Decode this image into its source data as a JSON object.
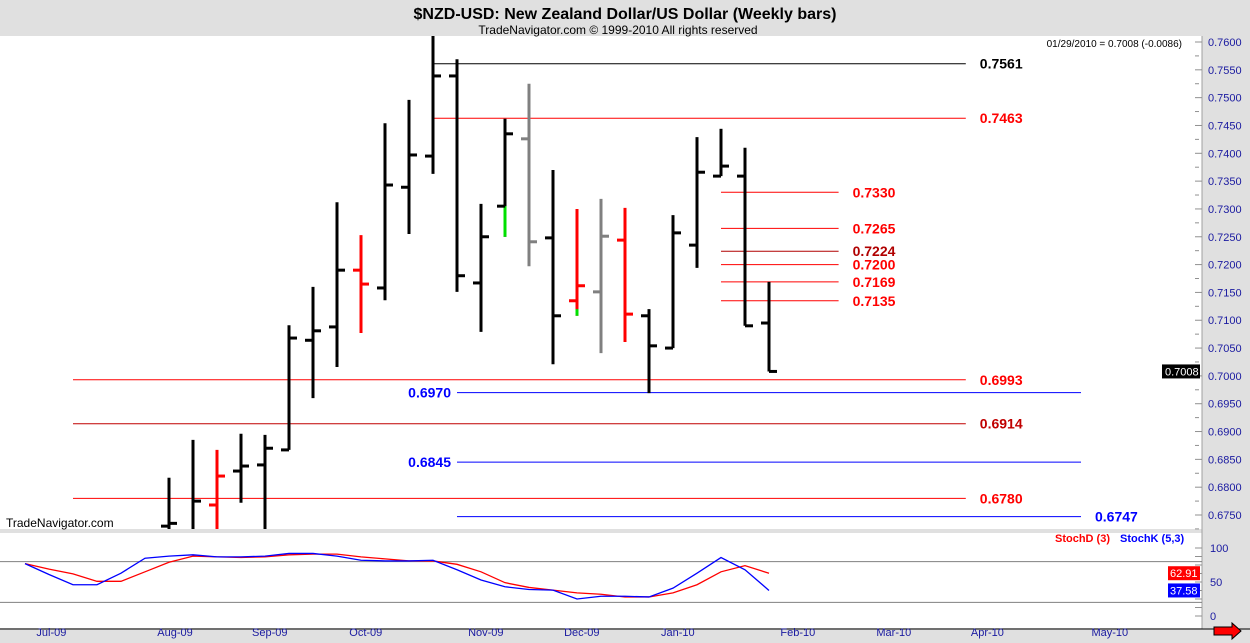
{
  "header": {
    "title": "$NZD-USD:  New Zealand Dollar/US Dollar  (Weekly bars)",
    "copyright": "TradeNavigator.com © 1999-2010 All rights reserved",
    "last_quote": "01/29/2010 = 0.7008 (-0.0086)",
    "watermark": "TradeNavigator.com"
  },
  "chart_data": [
    {
      "type": "ohlc",
      "title": "$NZD-USD:  New Zealand Dollar/US Dollar  (Weekly bars)",
      "ylim": [
        0.674,
        0.761
      ],
      "yticks": [
        "0.6750",
        "0.6800",
        "0.6850",
        "0.6900",
        "0.6950",
        "0.7000",
        "0.7050",
        "0.7100",
        "0.7150",
        "0.7200",
        "0.7250",
        "0.7300",
        "0.7350",
        "0.7400",
        "0.7450",
        "0.7500",
        "0.7550",
        "0.7600"
      ],
      "last_price_label": "0.7008",
      "colors": {
        "up": "#000000",
        "red": "#ff0000",
        "gray": "#808080",
        "green": "#00e000"
      },
      "bars": [
        {
          "week": 6,
          "o": 0.673,
          "h": 0.6817,
          "l": 0.67,
          "c": 0.6735,
          "color": "up"
        },
        {
          "week": 7,
          "o": 0.672,
          "h": 0.6885,
          "l": 0.669,
          "c": 0.6775,
          "color": "up"
        },
        {
          "week": 8,
          "o": 0.6768,
          "h": 0.6867,
          "l": 0.67,
          "c": 0.682,
          "color": "red"
        },
        {
          "week": 9,
          "o": 0.6829,
          "h": 0.6896,
          "l": 0.6772,
          "c": 0.6838,
          "color": "up"
        },
        {
          "week": 10,
          "o": 0.684,
          "h": 0.6894,
          "l": 0.67,
          "c": 0.687,
          "color": "up"
        },
        {
          "week": 11,
          "o": 0.6867,
          "h": 0.7091,
          "l": 0.6867,
          "c": 0.7068,
          "color": "up"
        },
        {
          "week": 12,
          "o": 0.7064,
          "h": 0.716,
          "l": 0.696,
          "c": 0.7081,
          "color": "up"
        },
        {
          "week": 13,
          "o": 0.7088,
          "h": 0.7312,
          "l": 0.7016,
          "c": 0.719,
          "color": "up"
        },
        {
          "week": 14,
          "o": 0.719,
          "h": 0.7253,
          "l": 0.7077,
          "c": 0.7165,
          "color": "red"
        },
        {
          "week": 15,
          "o": 0.7158,
          "h": 0.7454,
          "l": 0.7136,
          "c": 0.7343,
          "color": "up"
        },
        {
          "week": 16,
          "o": 0.7339,
          "h": 0.7496,
          "l": 0.7255,
          "c": 0.7397,
          "color": "up"
        },
        {
          "week": 17,
          "o": 0.7395,
          "h": 0.7613,
          "l": 0.7363,
          "c": 0.7539,
          "color": "up"
        },
        {
          "week": 18,
          "o": 0.7539,
          "h": 0.7569,
          "l": 0.7151,
          "c": 0.718,
          "color": "up"
        },
        {
          "week": 19,
          "o": 0.7167,
          "h": 0.7309,
          "l": 0.7079,
          "c": 0.725,
          "color": "up"
        },
        {
          "week": 20,
          "o": 0.7305,
          "h": 0.7462,
          "l": 0.725,
          "c": 0.7435,
          "color": "up",
          "low_accent": {
            "to": 0.7305,
            "color": "green"
          }
        },
        {
          "week": 21,
          "o": 0.7426,
          "h": 0.7525,
          "l": 0.7197,
          "c": 0.7241,
          "color": "gray"
        },
        {
          "week": 22,
          "o": 0.7248,
          "h": 0.737,
          "l": 0.7021,
          "c": 0.7108,
          "color": "up"
        },
        {
          "week": 23,
          "o": 0.7135,
          "h": 0.73,
          "l": 0.7108,
          "c": 0.7162,
          "color": "red",
          "low_accent": {
            "to": 0.712,
            "color": "green"
          }
        },
        {
          "week": 24,
          "o": 0.7151,
          "h": 0.7318,
          "l": 0.7041,
          "c": 0.7251,
          "color": "gray"
        },
        {
          "week": 25,
          "o": 0.7244,
          "h": 0.7302,
          "l": 0.7061,
          "c": 0.7111,
          "color": "red"
        },
        {
          "week": 26,
          "o": 0.7108,
          "h": 0.712,
          "l": 0.6969,
          "c": 0.7054,
          "color": "up"
        },
        {
          "week": 27,
          "o": 0.705,
          "h": 0.7289,
          "l": 0.705,
          "c": 0.7257,
          "color": "up"
        },
        {
          "week": 28,
          "o": 0.7235,
          "h": 0.7429,
          "l": 0.7194,
          "c": 0.7366,
          "color": "up"
        },
        {
          "week": 29,
          "o": 0.7359,
          "h": 0.7444,
          "l": 0.7359,
          "c": 0.7377,
          "color": "up"
        },
        {
          "week": 30,
          "o": 0.7359,
          "h": 0.741,
          "l": 0.709,
          "c": 0.709,
          "color": "up"
        },
        {
          "week": 31,
          "o": 0.7095,
          "h": 0.7169,
          "l": 0.7008,
          "c": 0.7008,
          "color": "up"
        }
      ],
      "levels": [
        {
          "value": 0.7561,
          "label": "0.7561",
          "color": "#000000",
          "from_week": 17,
          "to_week": 39.2,
          "label_side": "right"
        },
        {
          "value": 0.7463,
          "label": "0.7463",
          "color": "#ff0000",
          "from_week": 17,
          "to_week": 39.2,
          "label_side": "right"
        },
        {
          "value": 0.733,
          "label": "0.7330",
          "color": "#ff0000",
          "from_week": 29,
          "to_week": 33.9,
          "label_side": "right"
        },
        {
          "value": 0.7265,
          "label": "0.7265",
          "color": "#ff0000",
          "from_week": 29,
          "to_week": 33.9,
          "label_side": "right"
        },
        {
          "value": 0.7224,
          "label": "0.7224",
          "color": "#b00000",
          "from_week": 29,
          "to_week": 33.9,
          "label_side": "right"
        },
        {
          "value": 0.72,
          "label": "0.7200",
          "color": "#ff0000",
          "from_week": 29,
          "to_week": 33.9,
          "label_side": "right"
        },
        {
          "value": 0.7169,
          "label": "0.7169",
          "color": "#ff0000",
          "from_week": 29,
          "to_week": 33.9,
          "label_side": "right"
        },
        {
          "value": 0.7135,
          "label": "0.7135",
          "color": "#ff0000",
          "from_week": 29,
          "to_week": 33.9,
          "label_side": "right"
        },
        {
          "value": 0.6993,
          "label": "0.6993",
          "color": "#ff0000",
          "from_week": 2,
          "to_week": 39.2,
          "label_side": "right"
        },
        {
          "value": 0.697,
          "label": "0.6970",
          "color": "#0000ff",
          "from_week": 18,
          "to_week": 44,
          "label_side": "left"
        },
        {
          "value": 0.6914,
          "label": "0.6914",
          "color": "#c00000",
          "from_week": 2,
          "to_week": 39.2,
          "label_side": "right"
        },
        {
          "value": 0.6845,
          "label": "0.6845",
          "color": "#0000ff",
          "from_week": 18,
          "to_week": 44,
          "label_side": "left"
        },
        {
          "value": 0.678,
          "label": "0.6780",
          "color": "#ff0000",
          "from_week": 2,
          "to_week": 39.2,
          "label_side": "right"
        },
        {
          "value": 0.6747,
          "label": "0.6747",
          "color": "#0000ff",
          "from_week": 18,
          "to_week": 44,
          "label_side": "right"
        }
      ]
    },
    {
      "type": "line",
      "title": "Stochastic",
      "ylim": [
        0,
        100
      ],
      "yticks": [
        "0",
        "50",
        "100"
      ],
      "reference_lines": [
        20,
        80
      ],
      "series": [
        {
          "name": "StochD (3)",
          "color": "#ff0000",
          "last_label": "62.91",
          "values": [
            77,
            69,
            62,
            51,
            51,
            65,
            79,
            88,
            87,
            86,
            87,
            90,
            91,
            91,
            87,
            84,
            81,
            81,
            76,
            65,
            49,
            42,
            38,
            34,
            32,
            28,
            28,
            34,
            46,
            65,
            74,
            62.91
          ]
        },
        {
          "name": "StochK (5,3)",
          "color": "#0000ff",
          "last_label": "37.58",
          "values": [
            77,
            61,
            46,
            46,
            63,
            85,
            88,
            90,
            87,
            87,
            88,
            92,
            92,
            88,
            82,
            81,
            81,
            82,
            68,
            53,
            43,
            39,
            38,
            25,
            29,
            29,
            28,
            41,
            63,
            86,
            68,
            37.58
          ]
        }
      ]
    }
  ],
  "x_axis": {
    "labels": [
      {
        "text": "Jul-09",
        "week": 1.1
      },
      {
        "text": "Aug-09",
        "week": 6.25
      },
      {
        "text": "Sep-09",
        "week": 10.2
      },
      {
        "text": "Oct-09",
        "week": 14.2
      },
      {
        "text": "Nov-09",
        "week": 19.2
      },
      {
        "text": "Dec-09",
        "week": 23.2
      },
      {
        "text": "Jan-10",
        "week": 27.2
      },
      {
        "text": "Feb-10",
        "week": 32.2
      },
      {
        "text": "Mar-10",
        "week": 36.2
      },
      {
        "text": "Apr-10",
        "week": 40.1
      },
      {
        "text": "May-10",
        "week": 45.2
      }
    ]
  },
  "icons": {
    "scroll_right": "red-right-arrow-icon"
  }
}
